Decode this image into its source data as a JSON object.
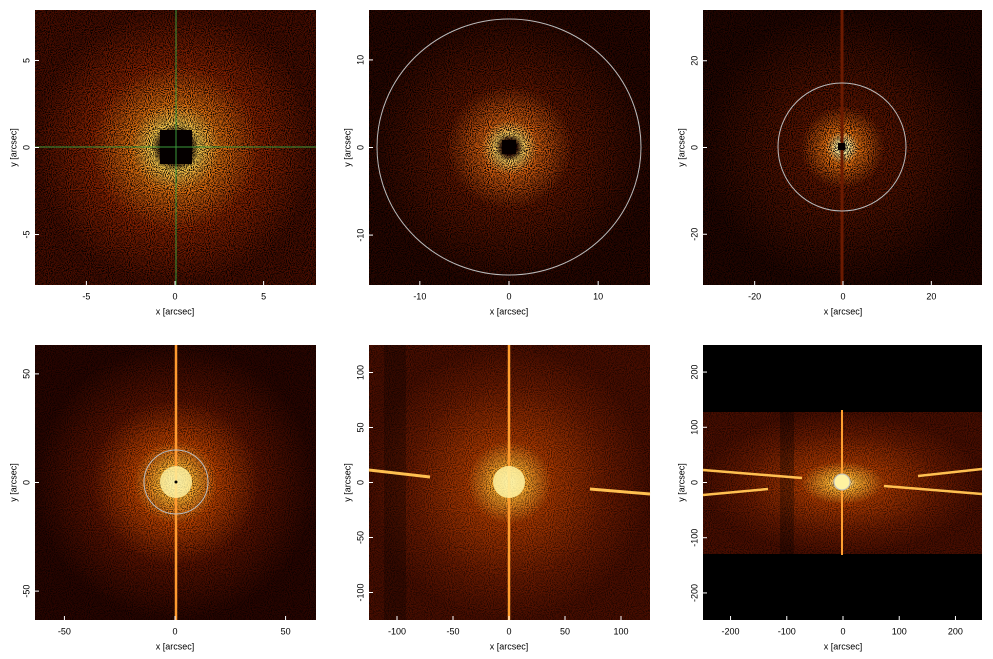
{
  "chart_data": [
    {
      "type": "image",
      "xlabel": "x [arcsec]",
      "ylabel": "y [arcsec]",
      "xlim": [
        -7.9,
        7.9
      ],
      "ylim": [
        -7.9,
        7.9
      ],
      "xticks": [
        -5,
        0,
        5
      ],
      "yticks": [
        -5,
        0,
        5
      ]
    },
    {
      "type": "image",
      "xlabel": "x [arcsec]",
      "ylabel": "y [arcsec]",
      "xlim": [
        -15.7,
        15.7
      ],
      "ylim": [
        -15.7,
        15.7
      ],
      "xticks": [
        -10,
        0,
        10
      ],
      "yticks": [
        -10,
        0,
        10
      ]
    },
    {
      "type": "image",
      "xlabel": "x [arcsec]",
      "ylabel": "y [arcsec]",
      "xlim": [
        -31.7,
        31.7
      ],
      "ylim": [
        -31.7,
        31.7
      ],
      "xticks": [
        -20,
        0,
        20
      ],
      "yticks": [
        -20,
        0,
        20
      ]
    },
    {
      "type": "image",
      "xlabel": "x [arcsec]",
      "ylabel": "y [arcsec]",
      "xlim": [
        -63.3,
        63.3
      ],
      "ylim": [
        -63.3,
        63.3
      ],
      "xticks": [
        -50,
        0,
        50
      ],
      "yticks": [
        -50,
        0,
        50
      ]
    },
    {
      "type": "image",
      "xlabel": "x [arcsec]",
      "ylabel": "y [arcsec]",
      "xlim": [
        -125,
        125
      ],
      "ylim": [
        -125,
        125
      ],
      "xticks": [
        -100,
        -50,
        0,
        50,
        100
      ],
      "yticks": [
        -100,
        -50,
        0,
        50,
        100
      ]
    },
    {
      "type": "image",
      "xlabel": "x [arcsec]",
      "ylabel": "y [arcsec]",
      "xlim": [
        -249,
        249
      ],
      "ylim": [
        -249,
        249
      ],
      "xticks": [
        -200,
        -100,
        0,
        100,
        200
      ],
      "yticks": [
        -200,
        -100,
        0,
        100,
        200
      ]
    }
  ]
}
